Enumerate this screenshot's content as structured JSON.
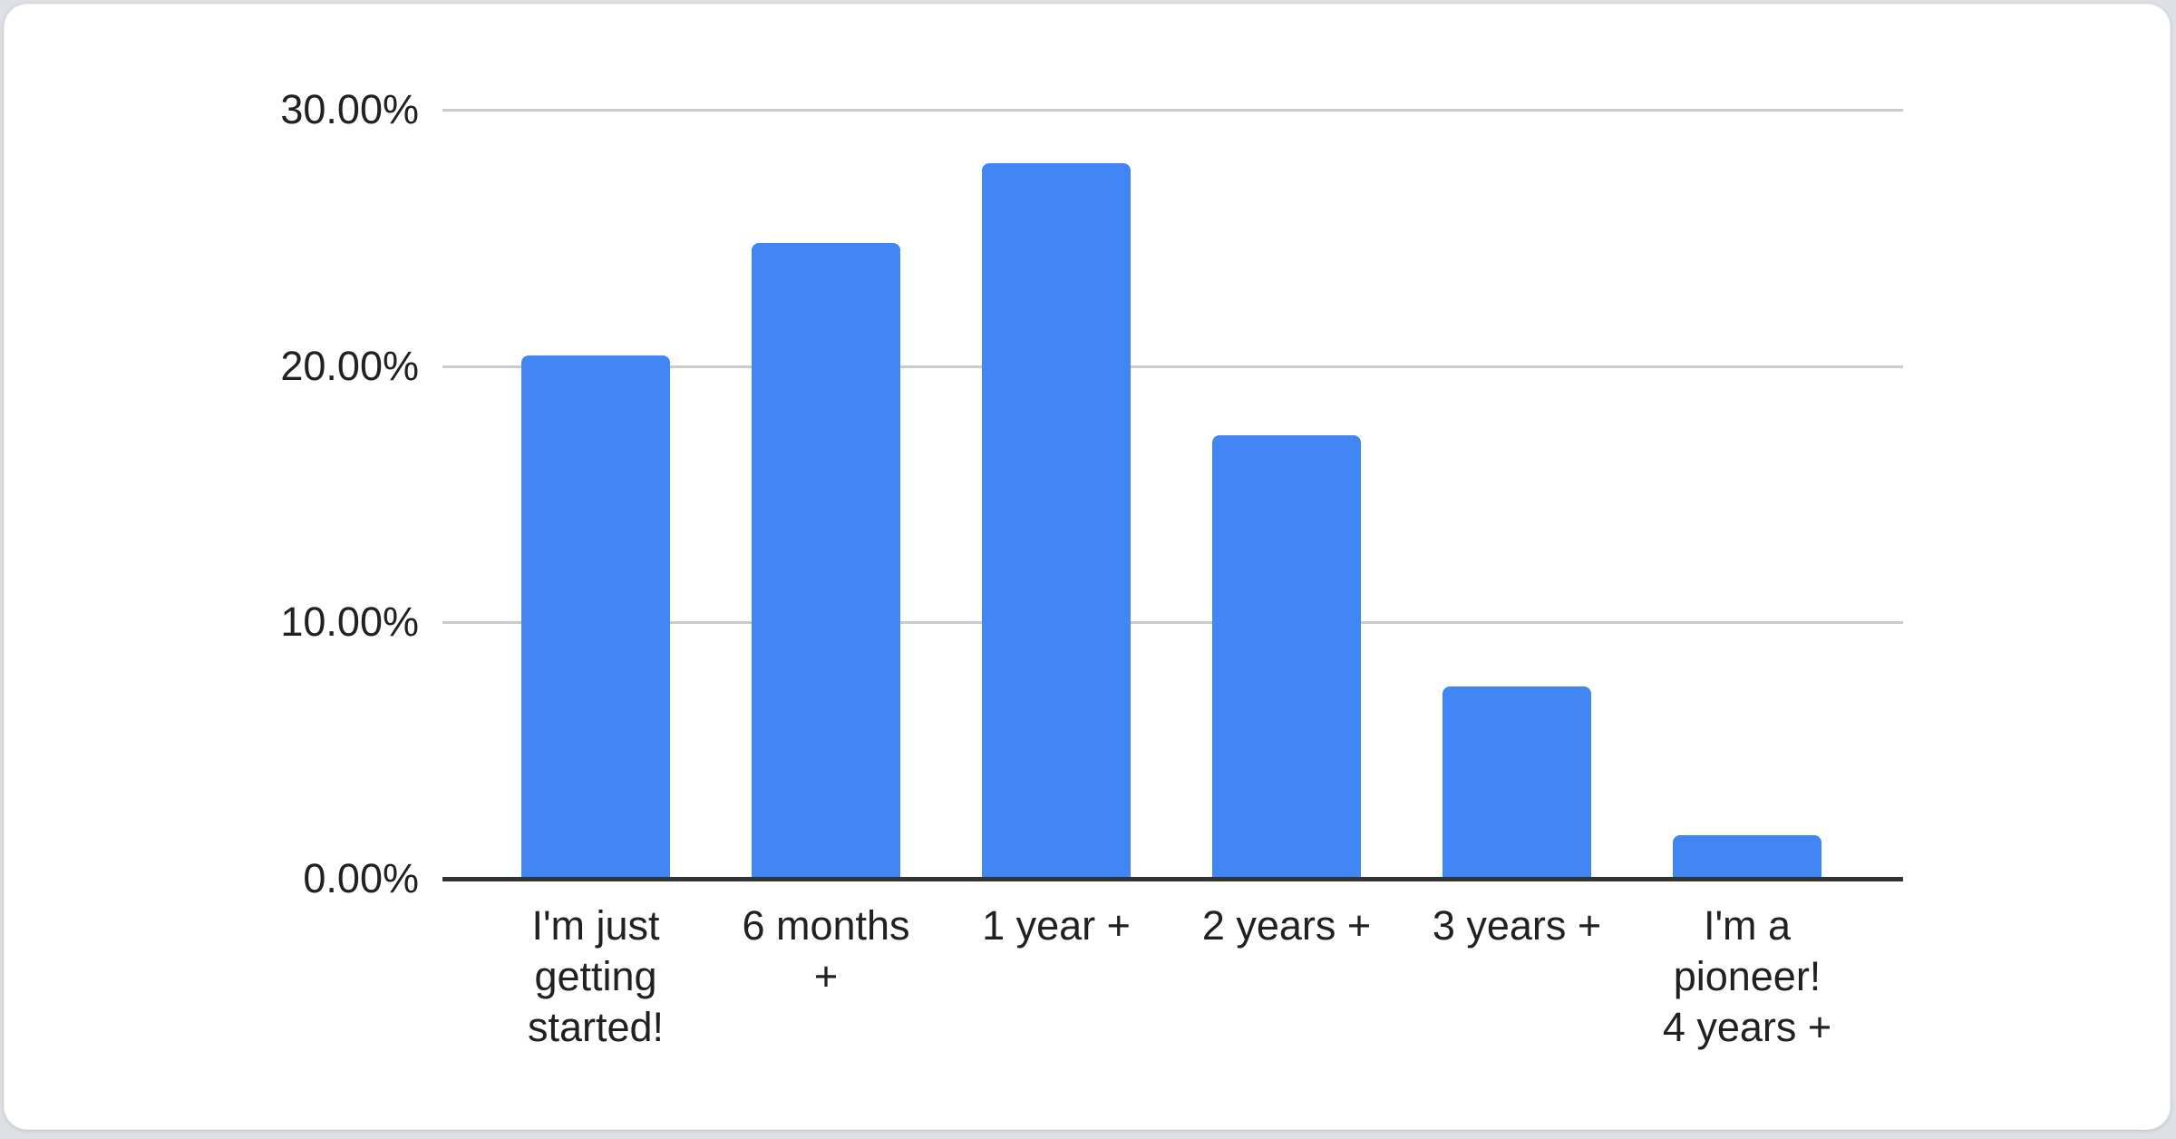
{
  "page": {
    "background_color": "#dde0e4",
    "card_background_color": "#ffffff"
  },
  "chart_data": {
    "type": "bar",
    "title": "",
    "categories": [
      "I'm just getting started!",
      "6 months +",
      "1 year +",
      "2 years +",
      "3 years +",
      "I'm a pioneer! 4 years +"
    ],
    "x_tick_lines": [
      [
        "I'm just",
        "getting",
        "started!"
      ],
      [
        "6 months",
        "+"
      ],
      [
        "1 year +"
      ],
      [
        "2 years +"
      ],
      [
        "3 years +"
      ],
      [
        "I'm a",
        "pioneer!",
        "4 years +"
      ]
    ],
    "values": [
      20.4,
      24.8,
      27.9,
      17.3,
      7.5,
      1.7
    ],
    "unit": "%",
    "xlabel": "",
    "ylabel": "",
    "ylim": [
      0,
      30
    ],
    "y_ticks": [
      "30.00%",
      "20.00%",
      "10.00%",
      "0.00%"
    ],
    "y_tick_values": [
      30,
      20,
      10,
      0
    ],
    "grid": true,
    "legend": "none",
    "bar_color": "#4285f4",
    "gridline_color": "#cccccc",
    "axis_color": "#333333",
    "label_color": "#212121"
  }
}
